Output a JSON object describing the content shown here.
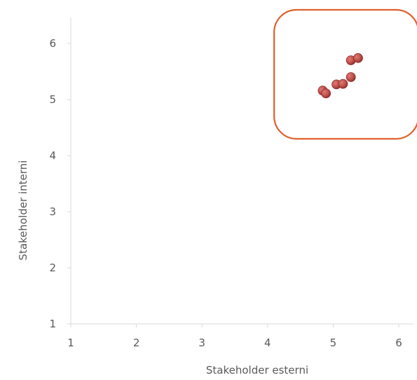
{
  "chart_data": {
    "type": "scatter",
    "title": "",
    "xlabel": "Stakeholder esterni",
    "ylabel": "Stakeholder interni",
    "xlim": [
      1,
      6
    ],
    "ylim": [
      1,
      6
    ],
    "x_ticks": [
      "1",
      "2",
      "3",
      "4",
      "5",
      "6"
    ],
    "y_ticks": [
      "1",
      "2",
      "3",
      "4",
      "5",
      "6"
    ],
    "grid": false,
    "legend": "none",
    "series": [
      {
        "points": [
          {
            "x": 4.84,
            "y": 5.16
          },
          {
            "x": 4.89,
            "y": 5.11
          },
          {
            "x": 5.05,
            "y": 5.27
          },
          {
            "x": 5.15,
            "y": 5.28
          },
          {
            "x": 5.27,
            "y": 5.4
          },
          {
            "x": 5.27,
            "y": 5.7
          },
          {
            "x": 5.38,
            "y": 5.74
          }
        ]
      }
    ],
    "highlight": {
      "x_range": [
        4.1,
        6.3
      ],
      "y_range": [
        4.3,
        6.6
      ]
    },
    "colors": {
      "marker_fill": "#c0504d",
      "marker_stroke": "#8c2f2c",
      "axis": "#d9d9d9",
      "highlight_box": "#e0602e",
      "text": "#595959"
    }
  }
}
